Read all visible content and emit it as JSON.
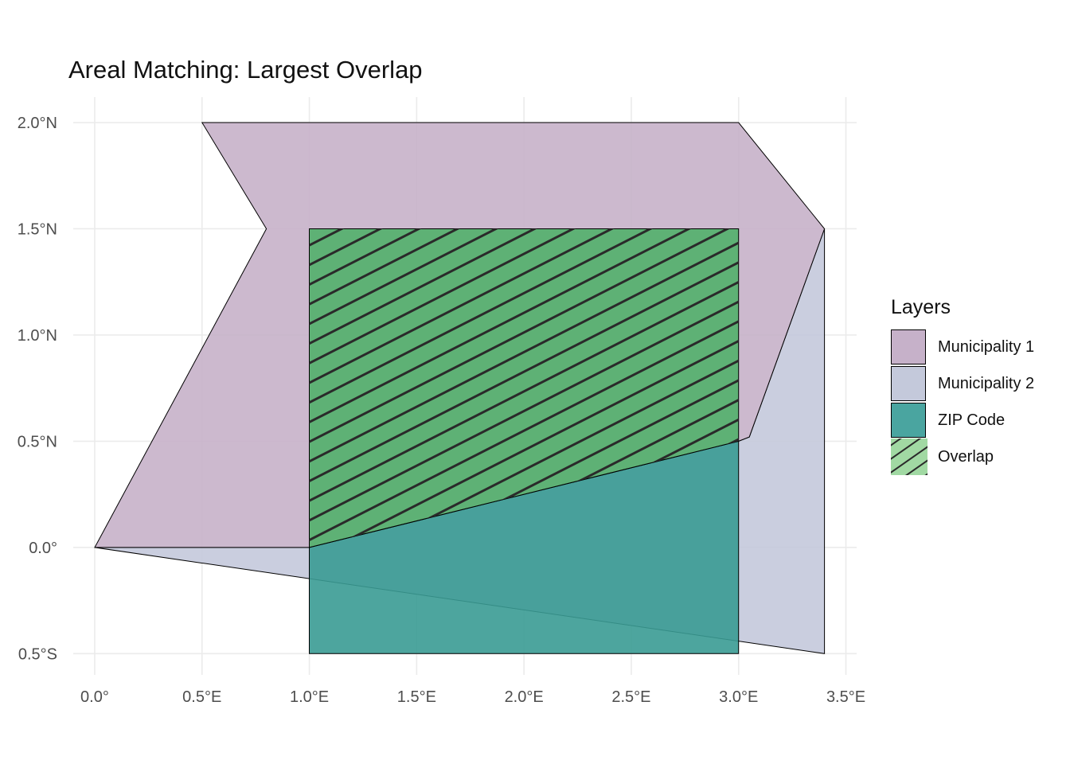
{
  "title": "Areal Matching: Largest Overlap",
  "chart_data": {
    "type": "map",
    "title": "Areal Matching: Largest Overlap",
    "xlim": [
      -0.1,
      3.55
    ],
    "ylim": [
      -0.6,
      2.12
    ],
    "x_ticks": [
      {
        "value": 0.0,
        "label": "0.0°"
      },
      {
        "value": 0.5,
        "label": "0.5°E"
      },
      {
        "value": 1.0,
        "label": "1.0°E"
      },
      {
        "value": 1.5,
        "label": "1.5°E"
      },
      {
        "value": 2.0,
        "label": "2.0°E"
      },
      {
        "value": 2.5,
        "label": "2.5°E"
      },
      {
        "value": 3.0,
        "label": "3.0°E"
      },
      {
        "value": 3.5,
        "label": "3.5°E"
      }
    ],
    "y_ticks": [
      {
        "value": 2.0,
        "label": "2.0°N"
      },
      {
        "value": 1.5,
        "label": "1.5°N"
      },
      {
        "value": 1.0,
        "label": "1.0°N"
      },
      {
        "value": 0.5,
        "label": "0.5°N"
      },
      {
        "value": 0.0,
        "label": "0.0°"
      },
      {
        "value": -0.5,
        "label": "0.5°S"
      }
    ],
    "grid": true,
    "legend": {
      "title": "Layers",
      "position": "right"
    },
    "layers": [
      {
        "name": "Municipality 2",
        "fill": "#c4c9db",
        "coords": [
          [
            0,
            0
          ],
          [
            3.4,
            -0.5
          ],
          [
            3.4,
            1.5
          ],
          [
            3.05,
            0.52
          ],
          [
            3.0,
            0.5
          ],
          [
            1.0,
            0.0
          ]
        ]
      },
      {
        "name": "Municipality 1",
        "fill": "#c6b1c9",
        "coords": [
          [
            0.5,
            2.0
          ],
          [
            3.0,
            2.0
          ],
          [
            3.4,
            1.5
          ],
          [
            3.05,
            0.52
          ],
          [
            3.0,
            0.5
          ],
          [
            1.0,
            0.0
          ],
          [
            0.0,
            0.0
          ],
          [
            0.8,
            1.5
          ]
        ]
      },
      {
        "name": "ZIP Code",
        "fill": "#3a9b94",
        "coords": [
          [
            1.0,
            -0.5
          ],
          [
            3.0,
            -0.5
          ],
          [
            3.0,
            0.5
          ],
          [
            1.0,
            0.0
          ]
        ]
      },
      {
        "name": "Overlap",
        "fill": "#52b06c",
        "hatch": "#2a2a2a",
        "coords": [
          [
            1.0,
            0.0
          ],
          [
            3.0,
            0.5
          ],
          [
            3.0,
            1.5
          ],
          [
            1.0,
            1.5
          ]
        ]
      }
    ],
    "legend_items": [
      {
        "label": "Municipality 1",
        "fill": "#c6b1c9"
      },
      {
        "label": "Municipality 2",
        "fill": "#c4c9db"
      },
      {
        "label": "ZIP Code",
        "fill": "#4aa5a0"
      },
      {
        "label": "Overlap",
        "fill": "#a1d9a3",
        "hatch": "#2a2a2a"
      }
    ]
  }
}
